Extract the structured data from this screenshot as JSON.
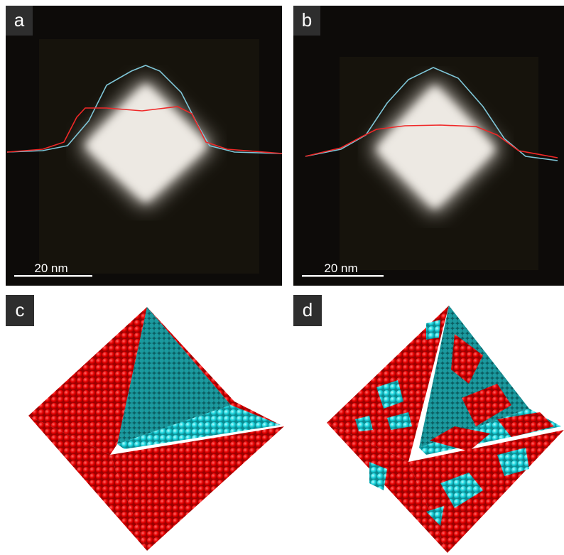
{
  "panels": [
    {
      "label": "a",
      "scale_bar": "20 nm"
    },
    {
      "label": "b",
      "scale_bar": "20 nm"
    },
    {
      "label": "c"
    },
    {
      "label": "d"
    }
  ]
}
